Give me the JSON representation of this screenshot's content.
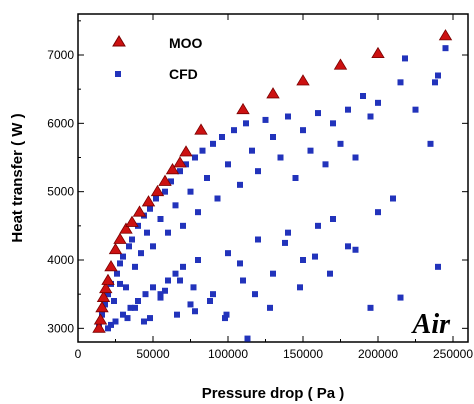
{
  "chart_data": {
    "type": "scatter",
    "xlabel": "Pressure drop ( Pa )",
    "ylabel": "Heat transfer ( W )",
    "annotation": "Air",
    "xlim": [
      0,
      260000
    ],
    "ylim": [
      2800,
      7600
    ],
    "xticks": [
      0,
      50000,
      100000,
      150000,
      200000,
      250000
    ],
    "yticks": [
      3000,
      4000,
      5000,
      6000,
      7000
    ],
    "legend_position": "top-left",
    "series": [
      {
        "name": "MOO",
        "marker": "triangle",
        "color": "#cc1111",
        "x": [
          14000,
          15000,
          16000,
          17000,
          18500,
          20000,
          22000,
          25000,
          28000,
          32000,
          36000,
          41000,
          47000,
          53000,
          58000,
          63000,
          68000,
          72000,
          82000,
          110000,
          130000,
          150000,
          175000,
          200000,
          245000
        ],
        "y": [
          3000,
          3120,
          3300,
          3450,
          3580,
          3700,
          3900,
          4150,
          4300,
          4450,
          4550,
          4700,
          4850,
          5000,
          5150,
          5320,
          5420,
          5580,
          5900,
          6200,
          6430,
          6620,
          6850,
          7020,
          7280
        ]
      },
      {
        "name": "CFD",
        "marker": "square",
        "color": "#2233bb",
        "x": [
          14000,
          16000,
          18000,
          20000,
          22000,
          24000,
          26000,
          28000,
          30000,
          32000,
          34000,
          36000,
          38000,
          40000,
          42000,
          44000,
          46000,
          48000,
          50000,
          52000,
          55000,
          58000,
          60000,
          62000,
          65000,
          68000,
          70000,
          72000,
          75000,
          78000,
          80000,
          83000,
          86000,
          90000,
          93000,
          96000,
          100000,
          104000,
          108000,
          112000,
          116000,
          120000,
          125000,
          130000,
          135000,
          140000,
          145000,
          150000,
          155000,
          160000,
          165000,
          170000,
          175000,
          180000,
          185000,
          190000,
          195000,
          200000,
          210000,
          215000,
          225000,
          235000,
          240000,
          245000,
          20000,
          25000,
          30000,
          35000,
          40000,
          45000,
          50000,
          55000,
          60000,
          65000,
          70000,
          75000,
          80000,
          90000,
          100000,
          110000,
          120000,
          130000,
          140000,
          150000,
          160000,
          170000,
          180000,
          200000,
          215000,
          240000,
          28000,
          38000,
          48000,
          58000,
          68000,
          78000,
          88000,
          98000,
          108000,
          118000,
          128000,
          138000,
          148000,
          158000,
          168000,
          185000,
          195000,
          238000,
          113000,
          218000,
          22000,
          33000,
          44000,
          55000,
          66000,
          77000,
          99000
        ],
        "y": [
          3050,
          3200,
          3350,
          3500,
          3650,
          3400,
          3800,
          3950,
          4050,
          3600,
          4200,
          4300,
          3900,
          4500,
          4100,
          4650,
          4400,
          4750,
          4200,
          4900,
          4600,
          5000,
          4400,
          5150,
          4800,
          5300,
          4500,
          5400,
          5000,
          5500,
          4700,
          5600,
          5200,
          5700,
          4900,
          5800,
          5400,
          5900,
          5100,
          6000,
          5600,
          5300,
          6050,
          5800,
          5500,
          6100,
          5200,
          5900,
          5600,
          6150,
          5400,
          6000,
          5700,
          6200,
          5500,
          6400,
          6100,
          6300,
          4900,
          6600,
          6200,
          5700,
          6700,
          7100,
          3000,
          3100,
          3200,
          3300,
          3400,
          3500,
          3600,
          3450,
          3700,
          3800,
          3900,
          3350,
          4000,
          3500,
          4100,
          3700,
          4300,
          3800,
          4400,
          4000,
          4500,
          4600,
          4200,
          4700,
          3450,
          3900,
          3650,
          3300,
          3150,
          3550,
          3700,
          3250,
          3400,
          3150,
          3950,
          3500,
          3300,
          4250,
          3600,
          4050,
          3800,
          4150,
          3300,
          6600,
          2850,
          6950,
          3050,
          3150,
          3100,
          3500,
          3200,
          3600,
          3200
        ]
      }
    ]
  }
}
